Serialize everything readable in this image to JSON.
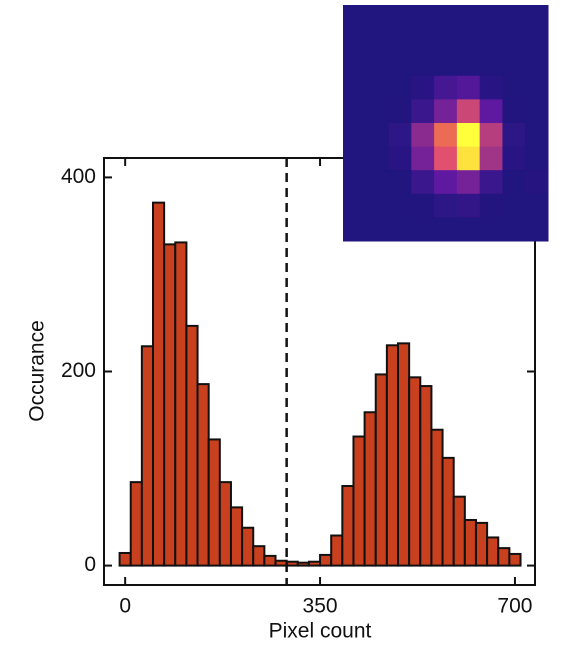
{
  "chart_data": {
    "type": "histogram",
    "xlabel": "Pixel count",
    "ylabel": "Occurance",
    "bins": [
      -10,
      10,
      30,
      50,
      70,
      90,
      110,
      130,
      150,
      170,
      190,
      210,
      230,
      250,
      270,
      290,
      310,
      330,
      350,
      370,
      390,
      410,
      430,
      450,
      470,
      490,
      510,
      530,
      550,
      570,
      590,
      610,
      630,
      650,
      670,
      690,
      710
    ],
    "values": [
      13,
      86,
      226,
      374,
      331,
      333,
      247,
      187,
      130,
      86,
      60,
      39,
      20,
      10,
      5,
      4,
      3,
      4,
      11,
      31,
      82,
      133,
      158,
      197,
      227,
      229,
      194,
      185,
      140,
      111,
      71,
      47,
      44,
      29,
      18,
      12
    ],
    "color": "#c9401e",
    "xlim": [
      -38,
      736
    ],
    "xticks": [
      0,
      350,
      700
    ],
    "ylim": [
      -20,
      420
    ],
    "yticks": [
      0,
      200,
      400
    ],
    "threshold": 290
  },
  "inset": {
    "type": "heatmap",
    "values": [
      [
        0.05,
        0.05,
        0.05,
        0.05,
        0.05,
        0.05,
        0.05,
        0.05,
        0.05
      ],
      [
        0.05,
        0.05,
        0.05,
        0.05,
        0.05,
        0.05,
        0.05,
        0.05,
        0.05
      ],
      [
        0.05,
        0.05,
        0.05,
        0.05,
        0.05,
        0.05,
        0.05,
        0.05,
        0.05
      ],
      [
        0.05,
        0.05,
        0.05,
        0.08,
        0.2,
        0.25,
        0.08,
        0.05,
        0.05
      ],
      [
        0.05,
        0.05,
        0.06,
        0.15,
        0.35,
        0.55,
        0.3,
        0.06,
        0.05
      ],
      [
        0.05,
        0.05,
        0.1,
        0.4,
        0.7,
        1.0,
        0.5,
        0.1,
        0.05
      ],
      [
        0.05,
        0.05,
        0.08,
        0.35,
        0.6,
        0.95,
        0.45,
        0.08,
        0.05
      ],
      [
        0.05,
        0.05,
        0.05,
        0.15,
        0.3,
        0.35,
        0.15,
        0.05,
        0.07
      ],
      [
        0.05,
        0.05,
        0.05,
        0.06,
        0.1,
        0.12,
        0.06,
        0.05,
        0.05
      ],
      [
        0.05,
        0.05,
        0.05,
        0.05,
        0.05,
        0.05,
        0.05,
        0.05,
        0.05
      ]
    ]
  }
}
